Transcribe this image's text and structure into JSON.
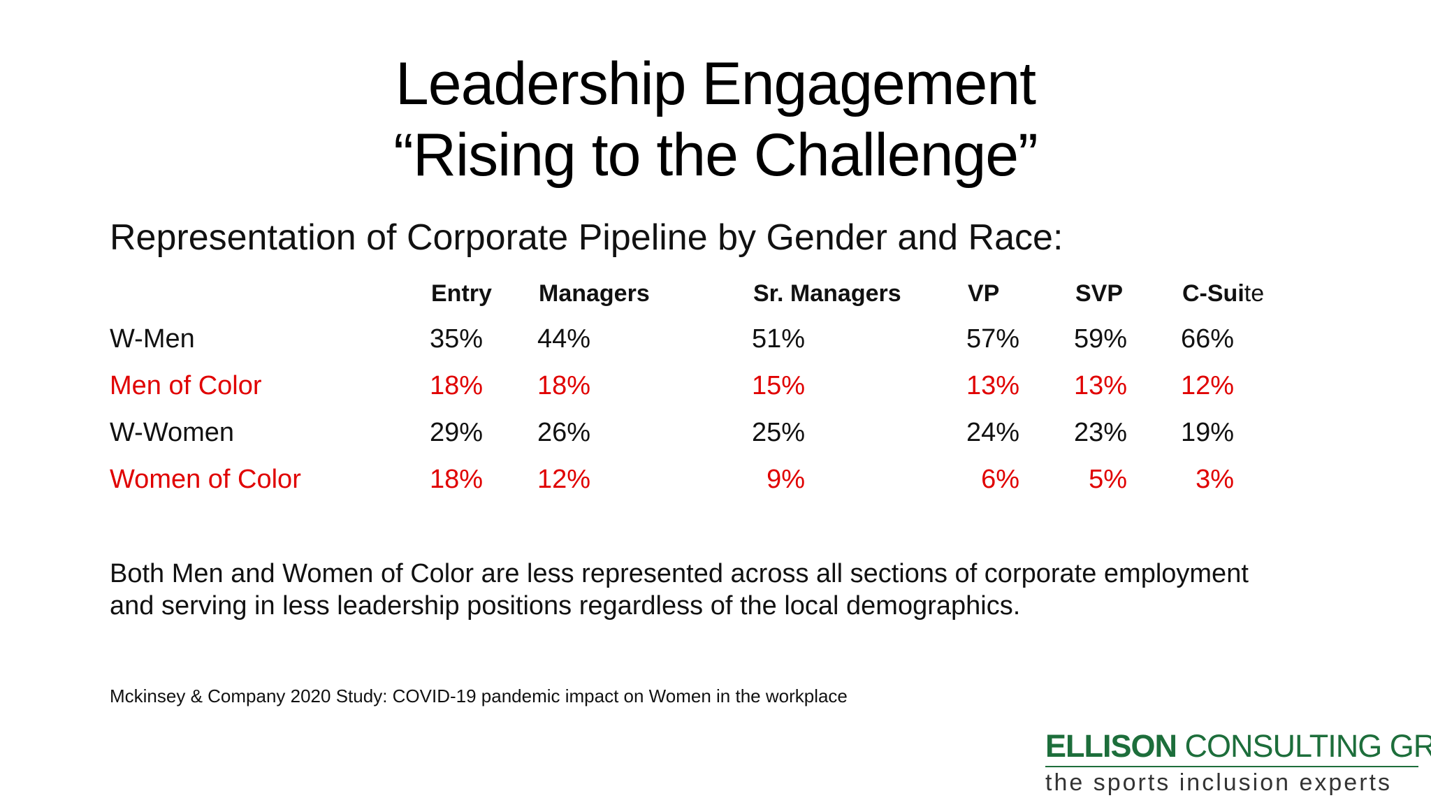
{
  "slide": {
    "title_line1": "Leadership Engagement",
    "title_line2": "“Rising to the Challenge”",
    "subtitle": "Representation of Corporate Pipeline by Gender and Race:",
    "columns": [
      {
        "label_bold": "Entry",
        "label_tail": ""
      },
      {
        "label_bold": "Managers",
        "label_tail": ""
      },
      {
        "label_bold": "Sr. Managers",
        "label_tail": ""
      },
      {
        "label_bold": "VP",
        "label_tail": ""
      },
      {
        "label_bold": "SVP",
        "label_tail": ""
      },
      {
        "label_bold": "C-Sui",
        "label_tail": "te"
      }
    ],
    "rows": [
      {
        "label": "W-Men",
        "color": "#111111",
        "values": [
          "35%",
          "44%",
          "51%",
          "57%",
          "59%",
          "66%"
        ]
      },
      {
        "label": "Men of Color",
        "color": "#e00000",
        "values": [
          "18%",
          "18%",
          "15%",
          "13%",
          "13%",
          "12%"
        ]
      },
      {
        "label": "W-Women",
        "color": "#111111",
        "values": [
          "29%",
          "26%",
          "25%",
          "24%",
          "23%",
          "19%"
        ]
      },
      {
        "label": "Women of Color",
        "color": "#e00000",
        "values": [
          "18%",
          "12%",
          "9%",
          "6%",
          "5%",
          "3%"
        ]
      }
    ],
    "body_line1": "Both Men and Women of Color are less represented across all sections of corporate employment",
    "body_line2": "and serving in less leadership positions regardless of the local demographics.",
    "source": "Mckinsey & Company 2020 Study: COVID-19 pandemic impact on Women in the workplace"
  },
  "logo": {
    "name_bold": "ELLISON",
    "name_rest": " CONSULTING GROUP",
    "tagline": "the sports inclusion experts",
    "brand_color": "#1d6e3b"
  }
}
